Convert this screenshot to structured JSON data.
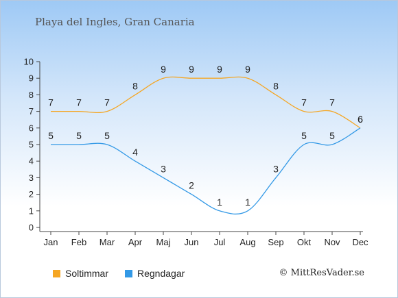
{
  "title": "Playa del Ingles, Gran Canaria",
  "credit": "© MittResVader.se",
  "chart_data": {
    "type": "line",
    "categories": [
      "Jan",
      "Feb",
      "Mar",
      "Apr",
      "Maj",
      "Jun",
      "Jul",
      "Aug",
      "Sep",
      "Okt",
      "Nov",
      "Dec"
    ],
    "series": [
      {
        "name": "Soltimmar",
        "color": "#f5a623",
        "values": [
          7,
          7,
          7,
          8,
          9,
          9,
          9,
          9,
          8,
          7,
          7,
          6
        ]
      },
      {
        "name": "Regndagar",
        "color": "#3399e6",
        "values": [
          5,
          5,
          5,
          4,
          3,
          2,
          1,
          1,
          3,
          5,
          5,
          6
        ]
      }
    ],
    "yticks": [
      0,
      1,
      2,
      3,
      4,
      5,
      6,
      7,
      8,
      9,
      10
    ],
    "ylim": [
      0,
      10
    ],
    "grid": false,
    "legend": "bottom-left"
  }
}
